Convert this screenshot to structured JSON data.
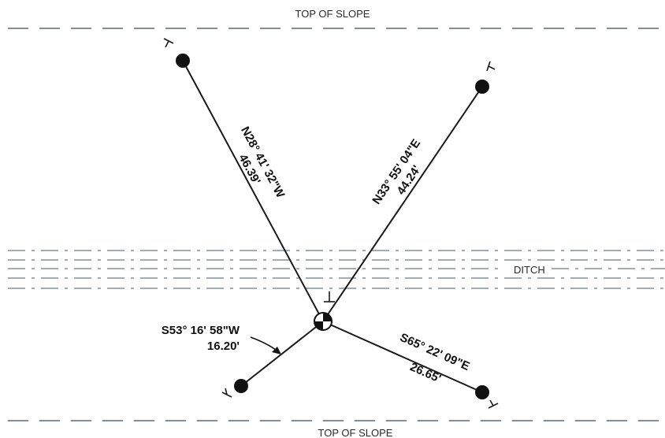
{
  "labels": {
    "top_of_slope_upper": "TOP OF SLOPE",
    "top_of_slope_lower": "TOP OF SLOPE",
    "ditch": "DITCH"
  },
  "ties": {
    "nw": {
      "bearing": "N28° 41' 32\"W",
      "distance": "46.39'"
    },
    "ne": {
      "bearing": "N33° 55' 04\"E",
      "distance": "44.24'"
    },
    "sw": {
      "bearing": "S53° 16' 58\"W",
      "distance": "16.20'"
    },
    "se": {
      "bearing": "S65° 22' 09\"E",
      "distance": "26.65'"
    }
  }
}
